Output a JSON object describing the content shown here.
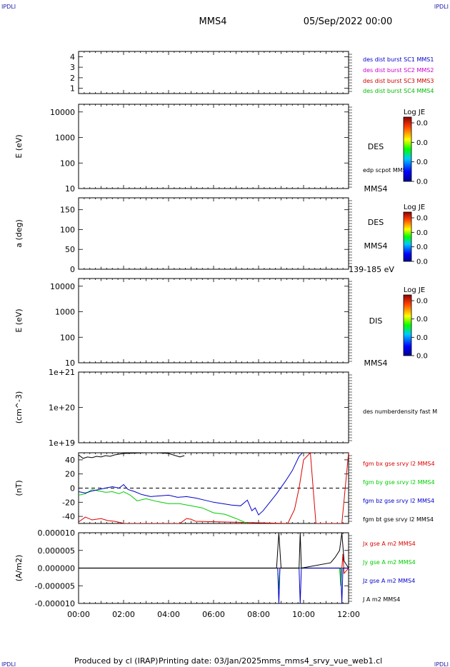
{
  "header": {
    "corner_tl": "IPDLI",
    "corner_tr": "IPDLI",
    "corner_bl": "IPDLI",
    "corner_br": "IPDLI",
    "spacecraft": "MMS4",
    "datetime": "05/Sep/2022 00:00"
  },
  "footer": {
    "produced_by": "Produced by cl (IRAP)",
    "printing_date": "Printing date: 03/Jan/2025",
    "file": "mms_mms4_srvy_vue_web1.cl"
  },
  "colors": {
    "mms1": "#0000cc",
    "mms2": "#cc00cc",
    "mms3": "#cc0000",
    "mms4": "#00bb00",
    "bx": "#dd0000",
    "by": "#00cc00",
    "bz": "#0000cc",
    "bt": "#000000"
  },
  "chart_data": [
    {
      "type": "line",
      "name": "burst-flags",
      "ylabel": "",
      "ylim": [
        0.5,
        4.5
      ],
      "yticks": [
        "1",
        "2",
        "3",
        "4"
      ],
      "legend": [
        "des dist burst SC1 MMS1",
        "des dist burst SC2 MMS2",
        "des dist burst SC3 MMS3",
        "des dist burst SC4 MMS4"
      ]
    },
    {
      "type": "heatmap",
      "name": "des-energy-spectrogram",
      "ylabel": "E (eV)",
      "yscale": "log",
      "ylim": [
        10,
        20000
      ],
      "yticks": [
        "10",
        "100",
        "1000",
        "10000"
      ],
      "side_labels": [
        "DES",
        "edp scpot MMS4",
        "MMS4"
      ],
      "colorbar": {
        "title": "Log JE",
        "ticks": [
          "0.0",
          "0.0",
          "0.0",
          "0.0"
        ]
      }
    },
    {
      "type": "heatmap",
      "name": "des-pitch-angle",
      "ylabel": "a (deg)",
      "ylim": [
        0,
        180
      ],
      "yticks": [
        "0",
        "50",
        "100",
        "150"
      ],
      "side_labels": [
        "DES",
        "MMS4",
        "139-185 eV"
      ],
      "colorbar": {
        "title": "Log JE",
        "ticks": [
          "0.0",
          "0.0",
          "0.0",
          "0.0"
        ]
      }
    },
    {
      "type": "heatmap",
      "name": "dis-energy-spectrogram",
      "ylabel": "E (eV)",
      "yscale": "log",
      "ylim": [
        10,
        20000
      ],
      "yticks": [
        "10",
        "100",
        "1000",
        "10000"
      ],
      "side_labels": [
        "DIS",
        "MMS4"
      ],
      "colorbar": {
        "title": "Log JE",
        "ticks": [
          "0.0",
          "0.0",
          "0.0",
          "0.0"
        ]
      }
    },
    {
      "type": "line",
      "name": "number-density",
      "ylabel": "(cm^-3)",
      "yscale": "log",
      "ylim": [
        1e+19,
        1e+21
      ],
      "yticks": [
        "1e+19",
        "1e+20",
        "1e+21"
      ],
      "legend": [
        "des numberdensity fast M"
      ]
    },
    {
      "type": "line",
      "name": "magnetic-field",
      "ylabel": "(nT)",
      "ylim": [
        -50,
        50
      ],
      "yticks": [
        "-40",
        "-20",
        "0",
        "20",
        "40"
      ],
      "legend": [
        "fgm bx gse srvy l2 MMS4",
        "fgm by gse srvy l2 MMS4",
        "fgm bz gse srvy l2 MMS4",
        "fgm bt gse srvy l2 MMS4"
      ],
      "series": [
        {
          "name": "fgm bx gse srvy l2 MMS4",
          "x": [
            0.0,
            0.3,
            0.6,
            1.0,
            1.3,
            1.6,
            1.9,
            2.0,
            4.5,
            4.8,
            5.0,
            5.2,
            9.3,
            9.6,
            9.8,
            10.0,
            10.3,
            10.55,
            11.7,
            11.85,
            12.0
          ],
          "y": [
            -48,
            -41,
            -45,
            -43,
            -46,
            -47,
            -49,
            -50,
            -50,
            -43,
            -44,
            -47,
            -50,
            -30,
            0,
            40,
            50,
            -50,
            -50,
            0,
            50
          ]
        },
        {
          "name": "fgm by gse srvy l2 MMS4",
          "x": [
            0.0,
            0.3,
            0.6,
            0.9,
            1.2,
            1.5,
            1.8,
            2.0,
            2.3,
            2.6,
            3.0,
            3.5,
            4.0,
            4.5,
            5.0,
            5.5,
            6.0,
            6.5,
            7.0,
            7.5
          ],
          "y": [
            -10,
            -8,
            -2,
            -4,
            -6,
            -5,
            -8,
            -5,
            -10,
            -18,
            -15,
            -19,
            -22,
            -22,
            -25,
            -28,
            -35,
            -37,
            -43,
            -50
          ]
        },
        {
          "name": "fgm bz gse srvy l2 MMS4",
          "x": [
            0.0,
            0.3,
            0.6,
            0.9,
            1.2,
            1.5,
            1.8,
            2.0,
            2.2,
            2.5,
            2.8,
            3.2,
            3.6,
            4.0,
            4.4,
            4.8,
            5.2,
            5.6,
            6.0,
            6.4,
            6.8,
            7.2,
            7.5,
            7.7,
            7.85,
            8.0,
            8.2,
            8.5,
            8.8,
            9.2,
            9.5,
            9.8,
            9.95
          ],
          "y": [
            -5,
            -7,
            -4,
            -2,
            0,
            2,
            0,
            5,
            -2,
            -5,
            -9,
            -12,
            -11,
            -10,
            -13,
            -12,
            -14,
            -17,
            -20,
            -22,
            -24,
            -25,
            -17,
            -32,
            -28,
            -38,
            -32,
            -20,
            -8,
            10,
            25,
            45,
            50
          ]
        },
        {
          "name": "fgm bt gse srvy l2 MMS4",
          "x": [
            0.0,
            0.2,
            0.4,
            0.6,
            0.8,
            1.0,
            1.2,
            1.4,
            1.6,
            1.8,
            2.0,
            3.0,
            3.5,
            4.0,
            4.5,
            4.7
          ],
          "y": [
            47,
            42,
            44,
            43,
            45,
            44,
            46,
            45,
            47,
            48,
            49,
            50,
            50,
            49,
            44,
            46
          ]
        }
      ]
    },
    {
      "type": "line",
      "name": "current-density",
      "ylabel": "(A/m2)",
      "ylim": [
        -1e-05,
        1e-05
      ],
      "yticks": [
        "-0.000010",
        "-0.000005",
        "0.000000",
        "0.000005",
        "0.000010"
      ],
      "legend": [
        "Jx gse A m2 MMS4",
        "Jy gse A m2 MMS4",
        "Jz gse A m2 MMS4",
        "J A m2 MMS4"
      ],
      "series": [
        {
          "name": "Jx gse A m2 MMS4",
          "x": [
            0,
            9.0,
            11.7,
            11.75,
            11.8,
            12.0
          ],
          "y": [
            0,
            0,
            0,
            4e-06,
            -1.5e-06,
            0
          ]
        },
        {
          "name": "Jy gse A m2 MMS4",
          "x": [
            0,
            8.85,
            8.9,
            8.95,
            11.6,
            11.65,
            11.7,
            12.0
          ],
          "y": [
            0,
            0,
            -6e-06,
            0,
            0,
            -5e-06,
            0,
            0
          ]
        },
        {
          "name": "Jz gse A m2 MMS4",
          "x": [
            0,
            8.85,
            8.9,
            8.95,
            9.8,
            9.85,
            9.9,
            11.65,
            11.7,
            11.75,
            12.0
          ],
          "y": [
            0,
            0,
            -1e-05,
            0,
            0,
            -1e-05,
            0,
            0,
            -1e-05,
            0,
            0
          ]
        },
        {
          "name": "J A m2 MMS4",
          "x": [
            0,
            8.8,
            8.9,
            9.0,
            9.8,
            9.85,
            9.9,
            11.2,
            11.4,
            11.6,
            11.7,
            11.8,
            12.0
          ],
          "y": [
            0,
            0,
            1e-05,
            0,
            0,
            1e-05,
            0,
            1.5e-06,
            3e-06,
            5e-06,
            1e-05,
            2e-06,
            0
          ]
        }
      ]
    }
  ],
  "time_axis": {
    "xlim": [
      0,
      12
    ],
    "tick_labels": [
      "00:00",
      "02:00",
      "04:00",
      "06:00",
      "08:00",
      "10:00",
      "12:00"
    ]
  }
}
